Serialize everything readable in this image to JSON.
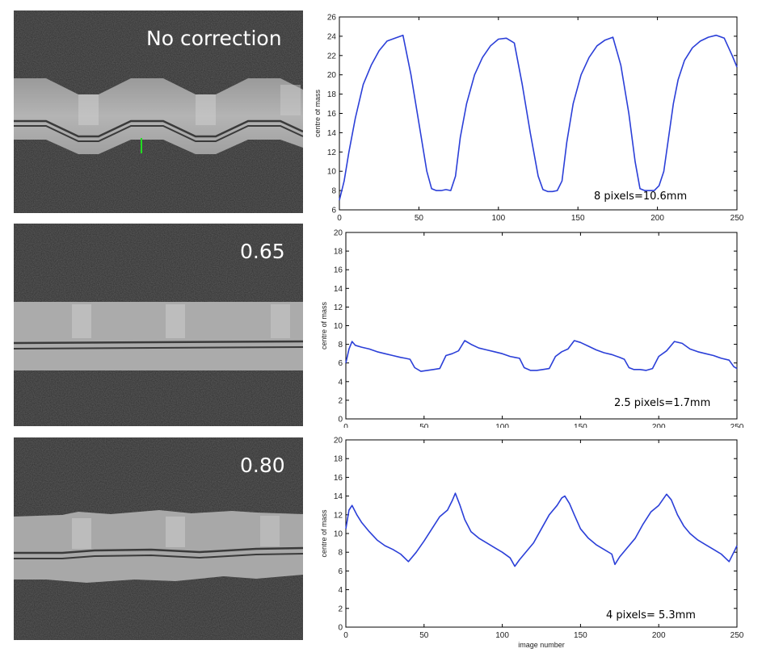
{
  "figure": {
    "width": 943,
    "height": 814
  },
  "image_panels": [
    {
      "label": "No correction",
      "amplitude_note": "strong oscillation"
    },
    {
      "label": "0.65",
      "amplitude_note": "weak oscillation"
    },
    {
      "label": "0.80",
      "amplitude_note": "moderate oscillation"
    }
  ],
  "chart_data": [
    {
      "type": "line",
      "title": "",
      "xlabel": "",
      "ylabel": "centre of mass",
      "xlim": [
        0,
        250
      ],
      "ylim": [
        6,
        26
      ],
      "xticks": [
        0,
        50,
        100,
        150,
        200,
        250
      ],
      "yticks": [
        6,
        8,
        10,
        12,
        14,
        16,
        18,
        20,
        22,
        24,
        26
      ],
      "annotation": "8 pixels=10.6mm",
      "color": "#2b3fd8",
      "series": [
        {
          "name": "No correction",
          "x": [
            0,
            3,
            6,
            10,
            15,
            20,
            25,
            30,
            35,
            40,
            45,
            50,
            55,
            58,
            61,
            64,
            67,
            70,
            73,
            76,
            80,
            85,
            90,
            95,
            100,
            105,
            110,
            115,
            120,
            125,
            128,
            131,
            134,
            137,
            140,
            143,
            147,
            152,
            157,
            162,
            167,
            172,
            177,
            182,
            186,
            189,
            192,
            195,
            198,
            201,
            204,
            207,
            210,
            213,
            217,
            222,
            227,
            232,
            237,
            242,
            247,
            250
          ],
          "y": [
            7.0,
            9.0,
            12.0,
            15.5,
            19.0,
            21.0,
            22.5,
            23.5,
            23.8,
            24.1,
            20.0,
            15.0,
            10.0,
            8.2,
            8.0,
            8.0,
            8.1,
            8.0,
            9.5,
            13.5,
            17.0,
            20.0,
            21.8,
            23.0,
            23.7,
            23.8,
            23.3,
            19.0,
            14.0,
            9.5,
            8.1,
            7.9,
            7.9,
            8.0,
            9.0,
            13.0,
            17.0,
            20.0,
            21.8,
            23.0,
            23.6,
            23.9,
            21.0,
            16.0,
            11.0,
            8.2,
            8.0,
            8.0,
            8.0,
            8.5,
            10.0,
            13.5,
            17.0,
            19.5,
            21.5,
            22.8,
            23.5,
            23.9,
            24.1,
            23.8,
            22.0,
            20.8
          ]
        }
      ]
    },
    {
      "type": "line",
      "title": "",
      "xlabel": "",
      "ylabel": "centre of mass",
      "xlim": [
        0,
        250
      ],
      "ylim": [
        0,
        20
      ],
      "xticks": [
        0,
        50,
        100,
        150,
        200,
        250
      ],
      "yticks": [
        0,
        2,
        4,
        6,
        8,
        10,
        12,
        14,
        16,
        18,
        20
      ],
      "annotation": "2.5 pixels=1.7mm",
      "color": "#2b3fd8",
      "series": [
        {
          "name": "0.65",
          "x": [
            0,
            2,
            4,
            6,
            10,
            15,
            20,
            25,
            30,
            35,
            38,
            41,
            44,
            48,
            52,
            56,
            60,
            64,
            68,
            72,
            76,
            80,
            85,
            90,
            95,
            100,
            105,
            108,
            111,
            114,
            118,
            122,
            126,
            130,
            134,
            138,
            142,
            146,
            150,
            155,
            160,
            165,
            170,
            175,
            178,
            181,
            184,
            188,
            192,
            196,
            200,
            205,
            210,
            215,
            220,
            225,
            230,
            235,
            240,
            245,
            248,
            250
          ],
          "y": [
            6.0,
            7.5,
            8.3,
            7.9,
            7.7,
            7.5,
            7.2,
            7.0,
            6.8,
            6.6,
            6.5,
            6.4,
            5.5,
            5.1,
            5.2,
            5.3,
            5.4,
            6.8,
            7.0,
            7.3,
            8.4,
            8.0,
            7.6,
            7.4,
            7.2,
            7.0,
            6.7,
            6.6,
            6.5,
            5.5,
            5.2,
            5.2,
            5.3,
            5.4,
            6.7,
            7.2,
            7.5,
            8.4,
            8.2,
            7.8,
            7.4,
            7.1,
            6.9,
            6.6,
            6.4,
            5.5,
            5.3,
            5.3,
            5.2,
            5.4,
            6.7,
            7.3,
            8.3,
            8.1,
            7.5,
            7.2,
            7.0,
            6.8,
            6.5,
            6.3,
            5.6,
            5.4
          ]
        }
      ]
    },
    {
      "type": "line",
      "title": "",
      "xlabel": "image number",
      "ylabel": "centre of mass",
      "xlim": [
        0,
        250
      ],
      "ylim": [
        0,
        20
      ],
      "xticks": [
        0,
        50,
        100,
        150,
        200,
        250
      ],
      "yticks": [
        0,
        2,
        4,
        6,
        8,
        10,
        12,
        14,
        16,
        18,
        20
      ],
      "annotation": "4 pixels= 5.3mm",
      "color": "#2b3fd8",
      "series": [
        {
          "name": "0.80",
          "x": [
            0,
            2,
            4,
            7,
            10,
            15,
            20,
            25,
            30,
            35,
            40,
            45,
            50,
            55,
            60,
            65,
            68,
            70,
            73,
            76,
            80,
            85,
            90,
            95,
            100,
            105,
            108,
            111,
            115,
            120,
            125,
            130,
            135,
            138,
            140,
            143,
            146,
            150,
            155,
            160,
            165,
            170,
            172,
            175,
            180,
            185,
            190,
            195,
            200,
            205,
            208,
            212,
            216,
            220,
            225,
            230,
            235,
            240,
            245,
            248,
            250
          ],
          "y": [
            10.5,
            12.5,
            13.0,
            12.0,
            11.2,
            10.2,
            9.3,
            8.7,
            8.3,
            7.8,
            7.0,
            8.0,
            9.2,
            10.5,
            11.8,
            12.5,
            13.5,
            14.3,
            13.0,
            11.5,
            10.2,
            9.5,
            9.0,
            8.5,
            8.0,
            7.4,
            6.5,
            7.2,
            8.0,
            9.0,
            10.5,
            12.0,
            13.0,
            13.8,
            14.0,
            13.2,
            12.0,
            10.5,
            9.5,
            8.8,
            8.3,
            7.8,
            6.7,
            7.5,
            8.5,
            9.5,
            11.0,
            12.3,
            13.0,
            14.2,
            13.6,
            12.0,
            10.8,
            10.0,
            9.3,
            8.8,
            8.3,
            7.8,
            7.0,
            8.0,
            8.7
          ]
        }
      ]
    }
  ]
}
